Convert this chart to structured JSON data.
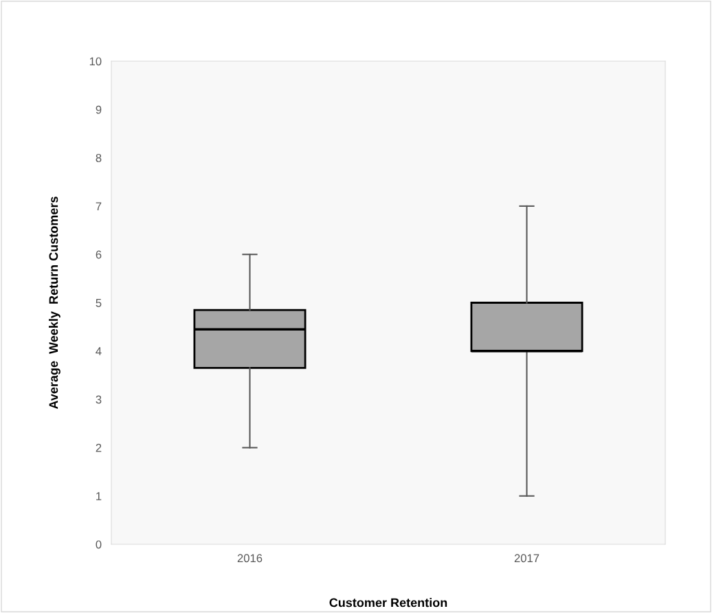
{
  "chart_data": {
    "type": "box",
    "xlabel": "Customer Retention",
    "ylabel": "Average  Weekly  Return Customers",
    "categories": [
      "2016",
      "2017"
    ],
    "boxes": [
      {
        "low": 2,
        "q1": 3.65,
        "median": 4.45,
        "q3": 4.85,
        "high": 6
      },
      {
        "low": 1,
        "q1": 4,
        "median": 4,
        "q3": 5,
        "high": 7
      }
    ],
    "color": "#a6a6a6",
    "ylim": [
      0,
      10
    ],
    "yticks": [
      0,
      1,
      2,
      3,
      4,
      5,
      6,
      7,
      8,
      9,
      10
    ],
    "grid": false,
    "legend": false
  }
}
